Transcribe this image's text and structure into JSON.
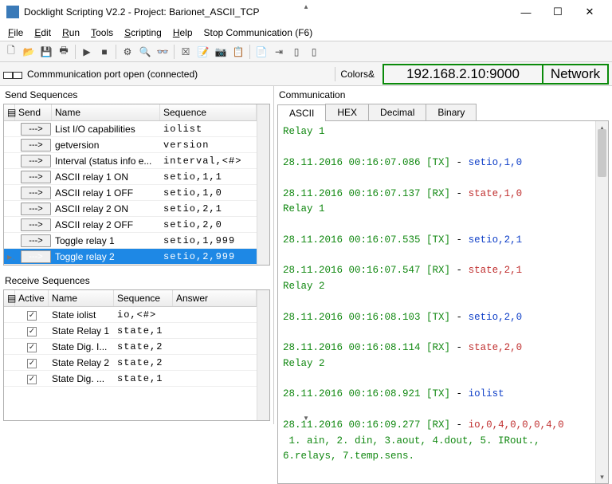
{
  "window": {
    "title": "Docklight Scripting V2.2 - Project: Barionet_ASCII_TCP"
  },
  "menu": {
    "file": "File",
    "edit": "Edit",
    "run": "Run",
    "tools": "Tools",
    "scripting": "Scripting",
    "help": "Help",
    "stop": "Stop Communication  (F6)"
  },
  "status": {
    "text": "Commmunication port open (connected)",
    "colors": "Colors&"
  },
  "address": {
    "ip": "192.168.2.10:9000",
    "mode": "Network"
  },
  "sendPanel": {
    "title": "Send Sequences",
    "headers": {
      "send": "Send",
      "name": "Name",
      "sequence": "Sequence"
    },
    "rows": [
      {
        "btn": "--->",
        "name": "List I/O capabilities",
        "seq": "iolist<CR>"
      },
      {
        "btn": "--->",
        "name": "getversion",
        "seq": "version<CR>"
      },
      {
        "btn": "--->",
        "name": "Interval (status info e...",
        "seq": "interval,<#>"
      },
      {
        "btn": "--->",
        "name": "ASCII relay 1 ON",
        "seq": "setio,1,1<CR>"
      },
      {
        "btn": "--->",
        "name": "ASCII relay 1 OFF",
        "seq": "setio,1,0<CR>"
      },
      {
        "btn": "--->",
        "name": "ASCII relay 2 ON",
        "seq": "setio,2,1<CR>"
      },
      {
        "btn": "--->",
        "name": "ASCII relay 2 OFF",
        "seq": "setio,2,0<CR>"
      },
      {
        "btn": "--->",
        "name": "Toggle relay 1",
        "seq": "setio,1,999"
      },
      {
        "btn": "--->",
        "name": "Toggle relay 2",
        "seq": "setio,2,999",
        "selected": true
      }
    ]
  },
  "recvPanel": {
    "title": "Receive Sequences",
    "headers": {
      "active": "Active",
      "name": "Name",
      "sequence": "Sequence",
      "answer": "Answer"
    },
    "rows": [
      {
        "name": "State iolist",
        "seq": "io,<#>"
      },
      {
        "name": "State Relay 1",
        "seq": "state,1"
      },
      {
        "name": "State Dig. I...",
        "seq": "state,2"
      },
      {
        "name": "State Relay 2",
        "seq": "state,2"
      },
      {
        "name": "State Dig. ...",
        "seq": "state,1"
      }
    ]
  },
  "comm": {
    "title": "Communication",
    "tabs": {
      "ascii": "ASCII",
      "hex": "HEX",
      "decimal": "Decimal",
      "binary": "Binary"
    },
    "log": [
      {
        "ts": "28.11.2016 00:16:07.086",
        "dir": "TX",
        "body": "setio,1,0<CR>",
        "cls": "tx"
      },
      {
        "ts": "28.11.2016 00:16:07.137",
        "dir": "RX",
        "body": "state,1,0<CR>",
        "cls": "rx",
        "extra": "Relay 1"
      },
      {
        "ts": "28.11.2016 00:16:07.535",
        "dir": "TX",
        "body": "setio,2,1<CR>",
        "cls": "tx"
      },
      {
        "ts": "28.11.2016 00:16:07.547",
        "dir": "RX",
        "body": "state,2,1<CR>",
        "cls": "rx",
        "extra": "Relay 2"
      },
      {
        "ts": "28.11.2016 00:16:08.103",
        "dir": "TX",
        "body": "setio,2,0<CR>",
        "cls": "tx"
      },
      {
        "ts": "28.11.2016 00:16:08.114",
        "dir": "RX",
        "body": "state,2,0<CR>",
        "cls": "rx",
        "extra": "Relay 2"
      },
      {
        "ts": "28.11.2016 00:16:08.921",
        "dir": "TX",
        "body": "iolist<CR>",
        "cls": "tx"
      },
      {
        "ts": "28.11.2016 00:16:09.277",
        "dir": "RX",
        "body": "io,0,4,0,0,0,4,0<CR>",
        "cls": "rx",
        "extra": " 1. ain, 2. din, 3.aout, 4.dout, 5. IRout., 6.relays, 7.temp.sens."
      }
    ],
    "topcut": "Relay 1"
  }
}
